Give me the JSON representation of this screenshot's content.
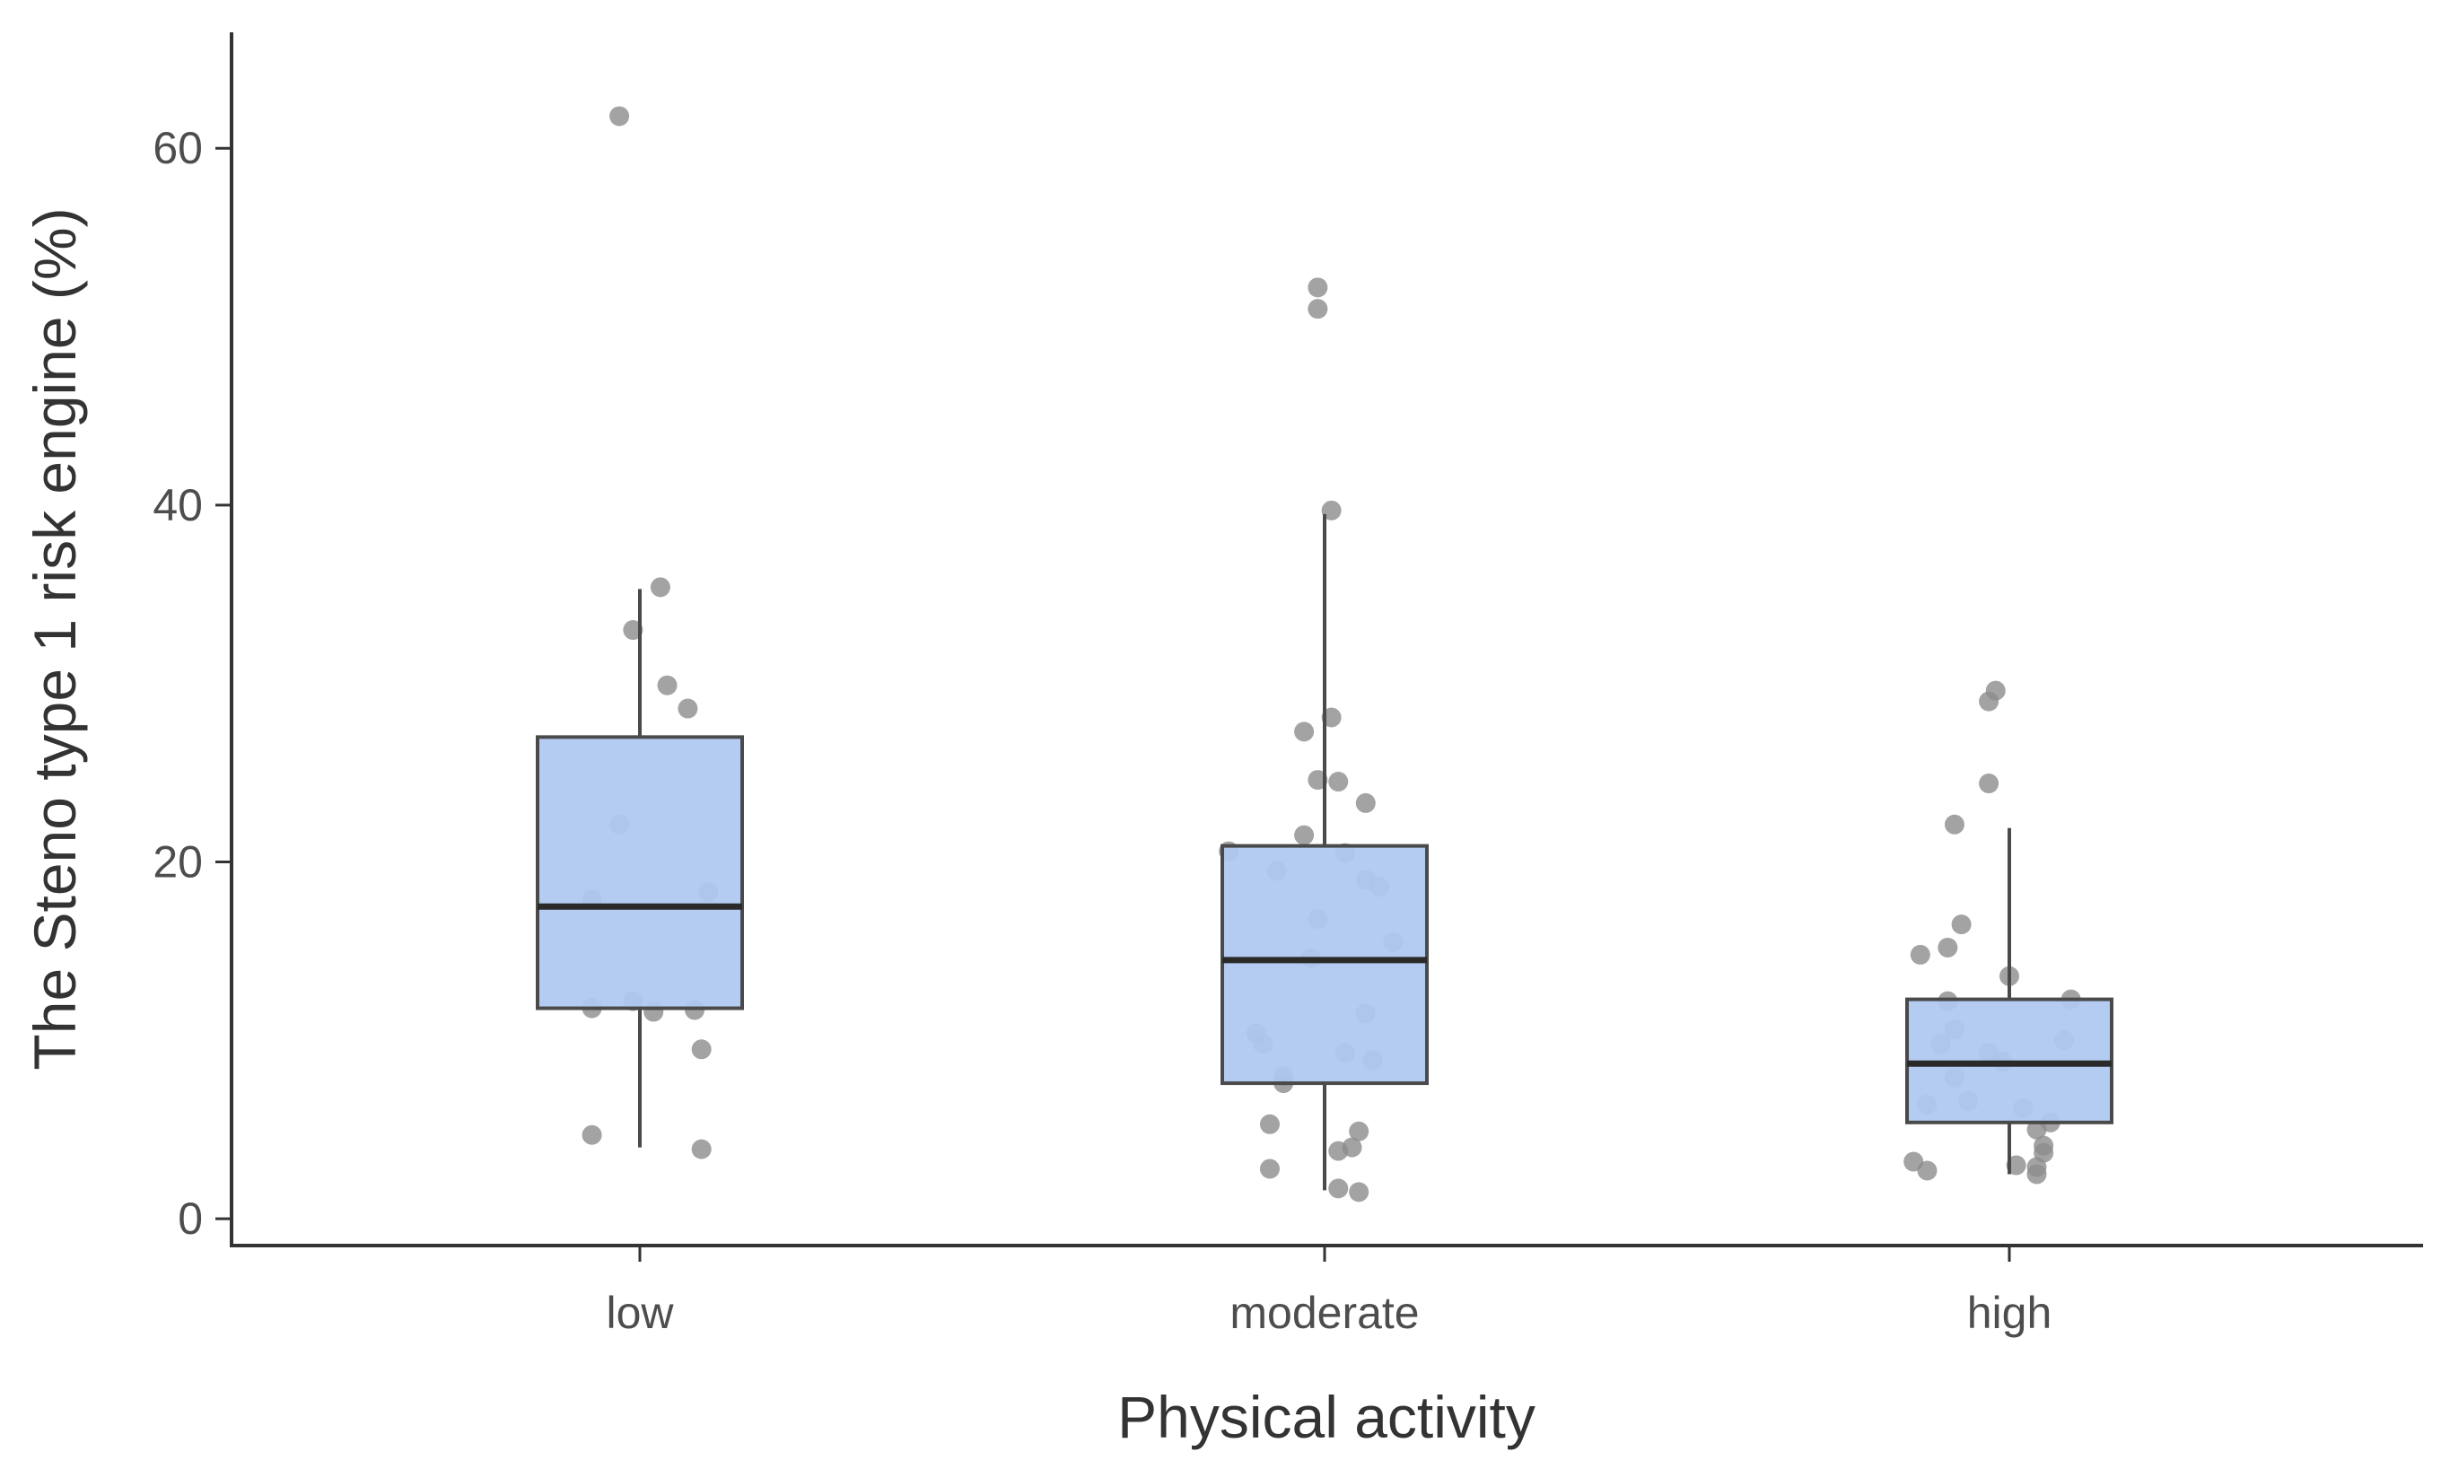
{
  "chart_data": {
    "type": "boxplot",
    "title": "",
    "xlabel": "Physical activity",
    "ylabel": "The Steno type 1 risk engine (%)",
    "ylim": [
      -1.5,
      66.5
    ],
    "yticks": [
      0,
      20,
      40,
      60
    ],
    "ytick_labels": [
      "0",
      "20",
      "40",
      "60"
    ],
    "categories": [
      "low",
      "moderate",
      "high"
    ],
    "box_fill": "#aec8f0",
    "box_stroke": "#4a4a4a",
    "point_color": "#8c8c8c",
    "axis_color": "#333333",
    "boxes": [
      {
        "category": "low",
        "q1": 11.8,
        "median": 17.5,
        "q3": 27.0,
        "whisker_low": 4.0,
        "whisker_high": 35.3
      },
      {
        "category": "moderate",
        "q1": 7.6,
        "median": 14.5,
        "q3": 20.9,
        "whisker_low": 1.6,
        "whisker_high": 39.5
      },
      {
        "category": "high",
        "q1": 5.4,
        "median": 8.7,
        "q3": 12.3,
        "whisker_low": 2.5,
        "whisker_high": 21.9
      }
    ],
    "points": [
      {
        "category": "low",
        "values": [
          61.8,
          35.4,
          33.0,
          29.9,
          28.6,
          22.1,
          18.3,
          17.9,
          12.2,
          11.8,
          11.6,
          11.7,
          9.5,
          4.7,
          3.9
        ],
        "jitter": [
          -0.03,
          0.03,
          -0.01,
          0.04,
          0.07,
          -0.03,
          0.1,
          -0.07,
          -0.01,
          -0.07,
          0.02,
          0.08,
          0.09,
          -0.07,
          0.09
        ]
      },
      {
        "category": "moderate",
        "values": [
          52.2,
          51.0,
          39.7,
          28.1,
          27.3,
          24.6,
          24.5,
          23.3,
          21.5,
          20.6,
          20.5,
          19.5,
          19.0,
          18.6,
          16.8,
          15.5,
          14.6,
          11.5,
          10.4,
          9.8,
          9.3,
          8.9,
          8.0,
          7.6,
          5.3,
          4.9,
          4.0,
          3.8,
          2.8,
          1.7,
          1.5
        ],
        "jitter": [
          -0.01,
          -0.01,
          0.01,
          0.01,
          -0.03,
          -0.01,
          0.02,
          0.06,
          -0.03,
          -0.14,
          0.03,
          -0.07,
          0.06,
          0.08,
          -0.01,
          0.1,
          -0.02,
          0.06,
          -0.1,
          -0.09,
          0.03,
          0.07,
          -0.06,
          -0.06,
          -0.08,
          0.05,
          0.04,
          0.02,
          -0.08,
          0.02,
          0.05
        ]
      },
      {
        "category": "high",
        "values": [
          29.6,
          29.0,
          24.4,
          22.1,
          16.5,
          15.2,
          14.8,
          13.6,
          12.3,
          12.2,
          10.6,
          10.0,
          9.8,
          9.3,
          8.8,
          7.9,
          6.6,
          6.4,
          6.2,
          5.4,
          5.0,
          4.1,
          3.7,
          3.2,
          3.0,
          2.9,
          2.7,
          2.5
        ],
        "jitter": [
          -0.02,
          -0.03,
          -0.03,
          -0.08,
          -0.07,
          -0.09,
          -0.13,
          0.0,
          0.09,
          -0.09,
          -0.08,
          0.08,
          -0.1,
          -0.03,
          -0.01,
          -0.08,
          -0.06,
          -0.12,
          0.02,
          0.06,
          0.04,
          0.05,
          0.05,
          -0.14,
          0.01,
          0.04,
          -0.12,
          0.04
        ]
      }
    ]
  }
}
